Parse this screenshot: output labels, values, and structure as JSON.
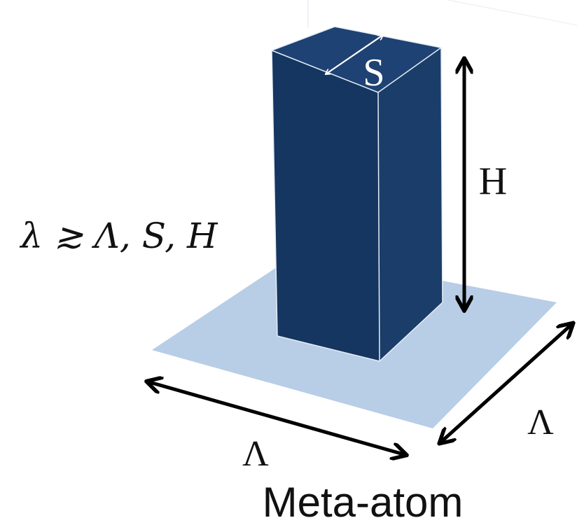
{
  "diagram": {
    "pillar_side_label": "S",
    "pillar_height_label": "H",
    "condition": "λ ≳ Λ, S, H",
    "period_label_front": "Λ",
    "period_label_side": "Λ",
    "caption": "Meta-atom",
    "colors": {
      "pillar_front": "#143660",
      "pillar_side": "#1b3d69",
      "pillar_top": "#1e4273",
      "pillar_edge": "#e6edf6",
      "substrate": "#b8cde6",
      "arrow": "#000000",
      "s_arrow": "#ffffff"
    }
  }
}
